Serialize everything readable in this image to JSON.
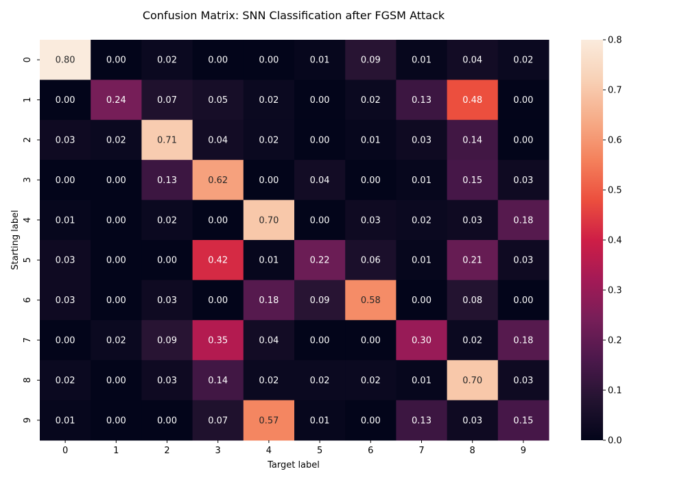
{
  "chart_data": {
    "type": "heatmap",
    "title": "Confusion Matrix: SNN Classification after FGSM Attack",
    "xlabel": "Target label",
    "ylabel": "Starting label",
    "x_categories": [
      "0",
      "1",
      "2",
      "3",
      "4",
      "5",
      "6",
      "7",
      "8",
      "9"
    ],
    "y_categories": [
      "0",
      "1",
      "2",
      "3",
      "4",
      "5",
      "6",
      "7",
      "8",
      "9"
    ],
    "values": [
      [
        0.8,
        0.0,
        0.02,
        0.0,
        0.0,
        0.01,
        0.09,
        0.01,
        0.04,
        0.02
      ],
      [
        0.0,
        0.24,
        0.07,
        0.05,
        0.02,
        0.0,
        0.02,
        0.13,
        0.48,
        0.0
      ],
      [
        0.03,
        0.02,
        0.71,
        0.04,
        0.02,
        0.0,
        0.01,
        0.03,
        0.14,
        0.0
      ],
      [
        0.0,
        0.0,
        0.13,
        0.62,
        0.0,
        0.04,
        0.0,
        0.01,
        0.15,
        0.03
      ],
      [
        0.01,
        0.0,
        0.02,
        0.0,
        0.7,
        0.0,
        0.03,
        0.02,
        0.03,
        0.18
      ],
      [
        0.03,
        0.0,
        0.0,
        0.42,
        0.01,
        0.22,
        0.06,
        0.01,
        0.21,
        0.03
      ],
      [
        0.03,
        0.0,
        0.03,
        0.0,
        0.18,
        0.09,
        0.58,
        0.0,
        0.08,
        0.0
      ],
      [
        0.0,
        0.02,
        0.09,
        0.35,
        0.04,
        0.0,
        0.0,
        0.3,
        0.02,
        0.18
      ],
      [
        0.02,
        0.0,
        0.03,
        0.14,
        0.02,
        0.02,
        0.02,
        0.01,
        0.7,
        0.03
      ],
      [
        0.01,
        0.0,
        0.0,
        0.07,
        0.57,
        0.01,
        0.0,
        0.13,
        0.03,
        0.15
      ]
    ],
    "value_format": "0.00",
    "colormap": "rocket",
    "vmin": 0.0,
    "vmax": 0.8,
    "colorbar_ticks": [
      "0.0",
      "0.1",
      "0.2",
      "0.3",
      "0.4",
      "0.5",
      "0.6",
      "0.7",
      "0.8"
    ],
    "legend": "right"
  }
}
